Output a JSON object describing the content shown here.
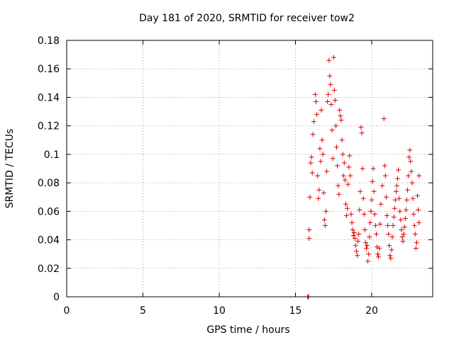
{
  "chart_data": {
    "type": "scatter",
    "title": "Day 181 of 2020, SRMTID for receiver tow2",
    "xlabel": "GPS time / hours",
    "ylabel": "SRMTID / TECUs",
    "xlim": [
      0,
      24
    ],
    "ylim": [
      0,
      0.18
    ],
    "xticks": [
      0,
      5,
      10,
      15,
      20
    ],
    "xtick_labels": [
      "0",
      "5",
      "10",
      "15",
      "20"
    ],
    "yticks": [
      0,
      0.02,
      0.04,
      0.06,
      0.08,
      0.1,
      0.12,
      0.14,
      0.16,
      0.18
    ],
    "ytick_labels": [
      "0",
      "0.02",
      "0.04",
      "0.06",
      "0.08",
      "0.1",
      "0.12",
      "0.14",
      "0.16",
      "0.18"
    ],
    "grid": true,
    "marker": "+",
    "color": "#e00000",
    "series": [
      {
        "name": "SRMTID",
        "points": [
          [
            15.8,
            0.0
          ],
          [
            15.82,
            0.0
          ],
          [
            15.84,
            0.0
          ],
          [
            15.86,
            0.0
          ],
          [
            15.9,
            0.047
          ],
          [
            15.9,
            0.041
          ],
          [
            15.95,
            0.07
          ],
          [
            16.0,
            0.094
          ],
          [
            16.05,
            0.098
          ],
          [
            16.1,
            0.087
          ],
          [
            16.15,
            0.114
          ],
          [
            16.2,
            0.123
          ],
          [
            16.3,
            0.142
          ],
          [
            16.35,
            0.137
          ],
          [
            16.4,
            0.128
          ],
          [
            16.45,
            0.085
          ],
          [
            16.5,
            0.069
          ],
          [
            16.55,
            0.075
          ],
          [
            16.6,
            0.104
          ],
          [
            16.65,
            0.095
          ],
          [
            16.7,
            0.131
          ],
          [
            16.75,
            0.11
          ],
          [
            16.8,
            0.1
          ],
          [
            16.85,
            0.073
          ],
          [
            16.9,
            0.054
          ],
          [
            16.95,
            0.05
          ],
          [
            17.0,
            0.06
          ],
          [
            17.05,
            0.088
          ],
          [
            17.1,
            0.137
          ],
          [
            17.15,
            0.142
          ],
          [
            17.2,
            0.166
          ],
          [
            17.25,
            0.155
          ],
          [
            17.3,
            0.149
          ],
          [
            17.35,
            0.135
          ],
          [
            17.4,
            0.117
          ],
          [
            17.45,
            0.097
          ],
          [
            17.5,
            0.168
          ],
          [
            17.55,
            0.145
          ],
          [
            17.6,
            0.138
          ],
          [
            17.65,
            0.12
          ],
          [
            17.7,
            0.105
          ],
          [
            17.75,
            0.092
          ],
          [
            17.8,
            0.078
          ],
          [
            17.85,
            0.072
          ],
          [
            17.9,
            0.131
          ],
          [
            17.95,
            0.127
          ],
          [
            18.0,
            0.124
          ],
          [
            18.05,
            0.11
          ],
          [
            18.1,
            0.1
          ],
          [
            18.15,
            0.085
          ],
          [
            18.2,
            0.094
          ],
          [
            18.25,
            0.082
          ],
          [
            18.3,
            0.065
          ],
          [
            18.35,
            0.057
          ],
          [
            18.4,
            0.062
          ],
          [
            18.45,
            0.079
          ],
          [
            18.5,
            0.091
          ],
          [
            18.55,
            0.099
          ],
          [
            18.6,
            0.085
          ],
          [
            18.65,
            0.058
          ],
          [
            18.7,
            0.052
          ],
          [
            18.75,
            0.047
          ],
          [
            18.8,
            0.043
          ],
          [
            18.85,
            0.045
          ],
          [
            18.9,
            0.041
          ],
          [
            18.95,
            0.036
          ],
          [
            19.0,
            0.032
          ],
          [
            19.05,
            0.029
          ],
          [
            19.1,
            0.039
          ],
          [
            19.15,
            0.044
          ],
          [
            19.2,
            0.061
          ],
          [
            19.25,
            0.074
          ],
          [
            19.3,
            0.119
          ],
          [
            19.35,
            0.115
          ],
          [
            19.4,
            0.09
          ],
          [
            19.45,
            0.069
          ],
          [
            19.5,
            0.058
          ],
          [
            19.55,
            0.047
          ],
          [
            19.6,
            0.038
          ],
          [
            19.65,
            0.034
          ],
          [
            19.7,
            0.036
          ],
          [
            19.75,
            0.025
          ],
          [
            19.8,
            0.03
          ],
          [
            19.85,
            0.042
          ],
          [
            19.9,
            0.052
          ],
          [
            19.95,
            0.06
          ],
          [
            20.0,
            0.068
          ],
          [
            20.05,
            0.081
          ],
          [
            20.1,
            0.09
          ],
          [
            20.15,
            0.074
          ],
          [
            20.2,
            0.058
          ],
          [
            20.25,
            0.05
          ],
          [
            20.3,
            0.044
          ],
          [
            20.35,
            0.035
          ],
          [
            20.4,
            0.03
          ],
          [
            20.45,
            0.028
          ],
          [
            20.5,
            0.034
          ],
          [
            20.55,
            0.051
          ],
          [
            20.6,
            0.065
          ],
          [
            20.7,
            0.078
          ],
          [
            20.8,
            0.125
          ],
          [
            20.85,
            0.092
          ],
          [
            20.9,
            0.085
          ],
          [
            20.95,
            0.07
          ],
          [
            21.0,
            0.057
          ],
          [
            21.05,
            0.05
          ],
          [
            21.1,
            0.044
          ],
          [
            21.15,
            0.036
          ],
          [
            21.2,
            0.029
          ],
          [
            21.25,
            0.027
          ],
          [
            21.3,
            0.033
          ],
          [
            21.35,
            0.042
          ],
          [
            21.4,
            0.05
          ],
          [
            21.45,
            0.056
          ],
          [
            21.5,
            0.062
          ],
          [
            21.55,
            0.068
          ],
          [
            21.6,
            0.074
          ],
          [
            21.65,
            0.078
          ],
          [
            21.7,
            0.083
          ],
          [
            21.75,
            0.089
          ],
          [
            21.8,
            0.069
          ],
          [
            21.85,
            0.06
          ],
          [
            21.9,
            0.054
          ],
          [
            21.95,
            0.047
          ],
          [
            22.0,
            0.042
          ],
          [
            22.05,
            0.039
          ],
          [
            22.1,
            0.044
          ],
          [
            22.15,
            0.049
          ],
          [
            22.2,
            0.055
          ],
          [
            22.25,
            0.061
          ],
          [
            22.3,
            0.068
          ],
          [
            22.35,
            0.075
          ],
          [
            22.4,
            0.085
          ],
          [
            22.45,
            0.098
          ],
          [
            22.5,
            0.103
          ],
          [
            22.55,
            0.095
          ],
          [
            22.6,
            0.088
          ],
          [
            22.65,
            0.08
          ],
          [
            22.7,
            0.069
          ],
          [
            22.75,
            0.058
          ],
          [
            22.8,
            0.05
          ],
          [
            22.85,
            0.044
          ],
          [
            22.9,
            0.034
          ],
          [
            22.95,
            0.038
          ],
          [
            23.0,
            0.071
          ],
          [
            23.05,
            0.061
          ],
          [
            23.1,
            0.052
          ],
          [
            23.1,
            0.085
          ]
        ]
      }
    ]
  }
}
